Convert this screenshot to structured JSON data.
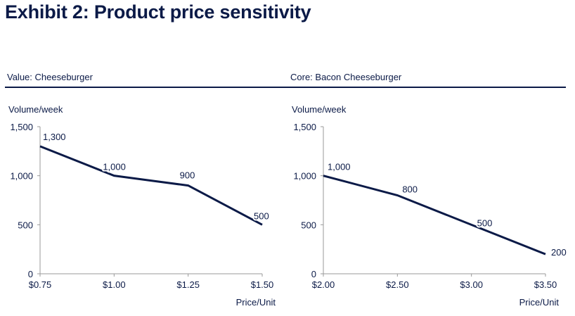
{
  "title": "Exhibit 2: Product price sensitivity",
  "colors": {
    "navy": "#0b1a47",
    "axis": "#9a9a9a"
  },
  "chart_data": [
    {
      "type": "line",
      "title": "Value: Cheeseburger",
      "ylabel": "Volume/week",
      "xlabel": "Price/Unit",
      "x": [
        0.75,
        1.0,
        1.25,
        1.5
      ],
      "x_tick_labels": [
        "$0.75",
        "$1.00",
        "$1.25",
        "$1.50"
      ],
      "y_ticks": [
        0,
        500,
        1000,
        1500
      ],
      "y_tick_labels": [
        "0",
        "500",
        "1,000",
        "1,500"
      ],
      "ylim": [
        0,
        1500
      ],
      "xlim": [
        0.75,
        1.5
      ],
      "series": [
        {
          "values": [
            1300,
            1000,
            900,
            500
          ],
          "labels": [
            "1,300",
            "1,000",
            "900",
            "500"
          ]
        }
      ],
      "grid": false
    },
    {
      "type": "line",
      "title": "Core: Bacon Cheeseburger",
      "ylabel": "Volume/week",
      "xlabel": "Price/Unit",
      "x": [
        2.0,
        2.5,
        3.0,
        3.5
      ],
      "x_tick_labels": [
        "$2.00",
        "$2.50",
        "$3.00",
        "$3.50"
      ],
      "y_ticks": [
        0,
        500,
        1000,
        1500
      ],
      "y_tick_labels": [
        "0",
        "500",
        "1,000",
        "1,500"
      ],
      "ylim": [
        0,
        1500
      ],
      "xlim": [
        2.0,
        3.5
      ],
      "series": [
        {
          "values": [
            1000,
            800,
            500,
            200
          ],
          "labels": [
            "1,000",
            "800",
            "500",
            "200"
          ]
        }
      ],
      "grid": false
    }
  ]
}
